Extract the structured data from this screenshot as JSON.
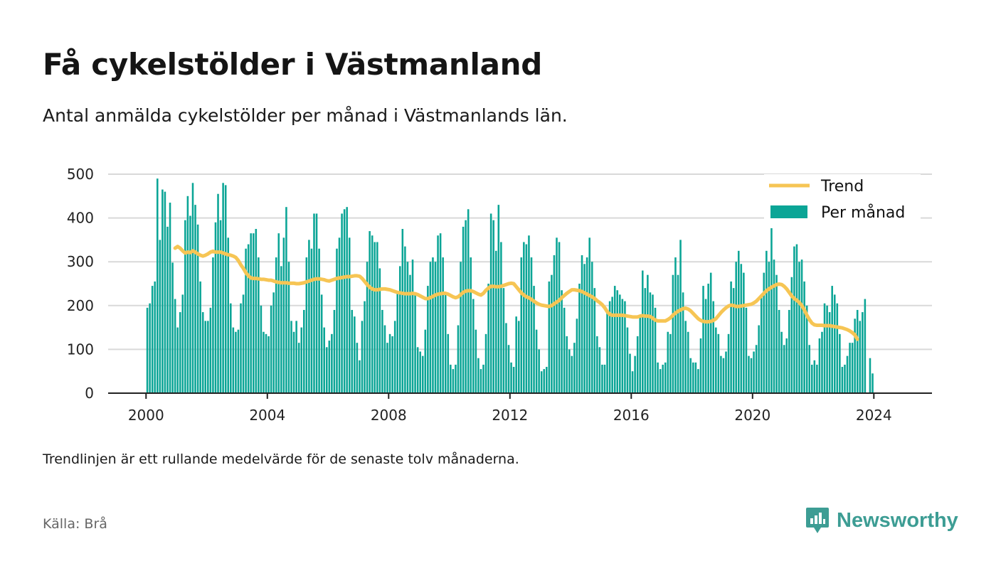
{
  "header": {
    "title": "Få cykelstölder i Västmanland",
    "subtitle": "Antal anmälda cykelstölder per månad i Västmanlands län."
  },
  "footer": {
    "note": "Trendlinjen är ett rullande medelvärde för de senaste tolv månaderna.",
    "source": "Källa: Brå",
    "brand": "Newsworthy",
    "brand_icon": "bar-chart-logo-icon"
  },
  "colors": {
    "bars": "#0ba596",
    "trend": "#f6c554",
    "grid": "#d9d9d9",
    "axis": "#222222",
    "brand": "#3d9d94"
  },
  "chart_data": {
    "type": "bar",
    "title": "Få cykelstölder i Västmanland",
    "xlabel": "",
    "ylabel": "",
    "x_ticks": [
      "2000",
      "2004",
      "2008",
      "2012",
      "2016",
      "2020",
      "2024"
    ],
    "y_ticks": [
      0,
      100,
      200,
      300,
      400,
      500
    ],
    "ylim": [
      0,
      500
    ],
    "xlim": [
      "1998-10",
      "2025-12"
    ],
    "grid": true,
    "legend_position": "top-right",
    "series": [
      {
        "name": "Per månad",
        "type": "bar",
        "start": "2000-01",
        "frequency": "monthly",
        "values": [
          195,
          205,
          245,
          255,
          490,
          350,
          465,
          460,
          380,
          435,
          298,
          215,
          150,
          185,
          225,
          395,
          450,
          405,
          480,
          430,
          385,
          255,
          185,
          165,
          165,
          195,
          310,
          390,
          455,
          395,
          480,
          475,
          355,
          205,
          150,
          140,
          145,
          205,
          225,
          330,
          340,
          365,
          365,
          375,
          310,
          200,
          140,
          135,
          130,
          200,
          230,
          310,
          365,
          290,
          355,
          425,
          300,
          165,
          140,
          165,
          115,
          150,
          190,
          310,
          350,
          330,
          410,
          410,
          330,
          225,
          150,
          105,
          120,
          135,
          190,
          330,
          355,
          410,
          420,
          425,
          355,
          190,
          175,
          115,
          75,
          165,
          210,
          300,
          370,
          360,
          345,
          345,
          285,
          190,
          155,
          115,
          135,
          130,
          165,
          230,
          290,
          375,
          335,
          300,
          270,
          305,
          225,
          105,
          95,
          85,
          145,
          245,
          300,
          310,
          300,
          360,
          365,
          310,
          230,
          135,
          65,
          55,
          65,
          155,
          300,
          380,
          395,
          420,
          310,
          215,
          145,
          80,
          55,
          65,
          135,
          250,
          410,
          395,
          325,
          430,
          345,
          240,
          160,
          110,
          70,
          60,
          175,
          165,
          310,
          345,
          340,
          360,
          310,
          245,
          145,
          100,
          50,
          55,
          60,
          255,
          270,
          315,
          355,
          345,
          235,
          195,
          130,
          100,
          85,
          115,
          170,
          250,
          315,
          295,
          310,
          355,
          300,
          240,
          130,
          105,
          65,
          65,
          185,
          210,
          220,
          245,
          235,
          225,
          215,
          210,
          150,
          90,
          50,
          85,
          130,
          175,
          280,
          240,
          270,
          230,
          225,
          195,
          70,
          55,
          65,
          70,
          140,
          135,
          270,
          310,
          270,
          350,
          230,
          165,
          140,
          80,
          70,
          70,
          55,
          125,
          245,
          215,
          250,
          275,
          210,
          150,
          135,
          85,
          80,
          95,
          135,
          255,
          240,
          300,
          325,
          295,
          275,
          195,
          85,
          80,
          95,
          110,
          155,
          225,
          275,
          325,
          300,
          390,
          305,
          270,
          190,
          140,
          110,
          125,
          190,
          265,
          335,
          340,
          300,
          305,
          255,
          200,
          110,
          65,
          75,
          65,
          125,
          140,
          205,
          200,
          185,
          245,
          225,
          205,
          135,
          60,
          65,
          85,
          115,
          115,
          170,
          190,
          165,
          185,
          215,
          0,
          80,
          45
        ]
      },
      {
        "name": "Trend",
        "type": "line",
        "start": "2000-12",
        "frequency": "monthly",
        "values": [
          331,
          335,
          331,
          325,
          320,
          322,
          321,
          325,
          322,
          318,
          315,
          313,
          315,
          318,
          322,
          324,
          322,
          322,
          322,
          320,
          318,
          316,
          315,
          313,
          310,
          303,
          293,
          285,
          275,
          268,
          263,
          262,
          262,
          261,
          260,
          260,
          259,
          258,
          258,
          256,
          254,
          253,
          252,
          252,
          252,
          251,
          251,
          251,
          250,
          250,
          251,
          252,
          254,
          256,
          258,
          260,
          261,
          261,
          260,
          259,
          257,
          256,
          258,
          260,
          262,
          263,
          264,
          265,
          266,
          266,
          267,
          268,
          268,
          267,
          262,
          255,
          248,
          242,
          238,
          236,
          236,
          237,
          238,
          238,
          237,
          236,
          234,
          232,
          230,
          229,
          228,
          227,
          227,
          227,
          228,
          227,
          225,
          222,
          219,
          216,
          216,
          218,
          221,
          224,
          226,
          227,
          228,
          228,
          226,
          223,
          220,
          218,
          220,
          225,
          230,
          233,
          234,
          234,
          232,
          229,
          226,
          224,
          228,
          235,
          240,
          244,
          244,
          243,
          243,
          244,
          246,
          248,
          250,
          251,
          250,
          243,
          236,
          229,
          224,
          220,
          218,
          214,
          210,
          206,
          203,
          201,
          200,
          199,
          198,
          200,
          204,
          208,
          212,
          218,
          223,
          228,
          232,
          236,
          236,
          235,
          234,
          232,
          229,
          226,
          223,
          220,
          216,
          211,
          207,
          202,
          195,
          186,
          180,
          178,
          178,
          178,
          178,
          178,
          177,
          176,
          175,
          174,
          174,
          174,
          176,
          177,
          176,
          176,
          175,
          171,
          167,
          165,
          165,
          165,
          165,
          168,
          172,
          178,
          183,
          187,
          190,
          193,
          194,
          192,
          188,
          182,
          176,
          170,
          166,
          164,
          163,
          163,
          164,
          166,
          170,
          177,
          184,
          190,
          195,
          199,
          201,
          200,
          198,
          198,
          199,
          200,
          201,
          202,
          203,
          206,
          210,
          216,
          222,
          228,
          234,
          238,
          242,
          245,
          248,
          249,
          248,
          244,
          238,
          230,
          222,
          216,
          212,
          207,
          200,
          190,
          178,
          168,
          160,
          156,
          155,
          155,
          155,
          154,
          154,
          154,
          153,
          152,
          151,
          150,
          149,
          147,
          145,
          142,
          138,
          133,
          123
        ]
      }
    ]
  }
}
